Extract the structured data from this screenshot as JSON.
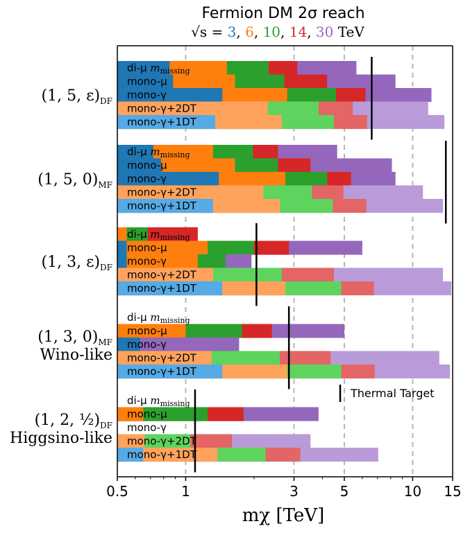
{
  "chart_data": {
    "type": "bar",
    "orientation": "horizontal",
    "title": "Fermion DM 2σ reach",
    "subtitle": {
      "prefix": "√s = ",
      "energies": [
        {
          "label": "3",
          "color": "#1f77b4"
        },
        {
          "label": "6",
          "color": "#ff7f0e"
        },
        {
          "label": "10",
          "color": "#2ca02c"
        },
        {
          "label": "14",
          "color": "#d62728"
        },
        {
          "label": "30",
          "color": "#9467bd"
        }
      ],
      "unit": "TeV"
    },
    "xlabel": "mχ [TeV]",
    "xscale": "log",
    "xlim": [
      0.5,
      15
    ],
    "xticks": [
      {
        "value": 0.5,
        "label": "0.5"
      },
      {
        "value": 1,
        "label": "1"
      },
      {
        "value": 3,
        "label": "3"
      },
      {
        "value": 5,
        "label": "5"
      },
      {
        "value": 10,
        "label": "10"
      },
      {
        "value": 15,
        "label": "15"
      }
    ],
    "gridlines_x": [
      1,
      3,
      5,
      10
    ],
    "colors": {
      "solid": [
        "#1f77b4",
        "#ff7f0e",
        "#2ca02c",
        "#d62728",
        "#9467bd"
      ],
      "light": [
        "#56aae6",
        "#ffa35c",
        "#5ed45e",
        "#e36565",
        "#b99bd9"
      ]
    },
    "groups": [
      {
        "label_lines": [
          "(1, 5, ε)DF"
        ],
        "thermal_target": 6.6,
        "rows": [
          {
            "label": "di-μ m_missing",
            "style": "solid",
            "reach": [
              0.85,
              1.52,
              2.32,
              3.1,
              5.65
            ]
          },
          {
            "label": "mono-μ",
            "style": "solid",
            "reach": [
              0.88,
              1.65,
              2.72,
              4.2,
              8.4
            ]
          },
          {
            "label": "mono-γ",
            "style": "solid",
            "reach": [
              1.45,
              2.8,
              4.6,
              6.2,
              12.1
            ]
          },
          {
            "label": "mono-γ+2DT",
            "style": "light",
            "reach": [
              0.5,
              2.3,
              3.85,
              5.45,
              11.7
            ]
          },
          {
            "label": "mono-γ+1DT",
            "style": "light",
            "reach": [
              1.35,
              2.65,
              4.5,
              6.3,
              13.8
            ]
          }
        ]
      },
      {
        "label_lines": [
          "(1, 5, 0)MF"
        ],
        "thermal_target": 14.0,
        "rows": [
          {
            "label": "di-μ m_missing",
            "style": "solid",
            "reach": [
              0.72,
              1.32,
              1.98,
              2.55,
              4.65
            ]
          },
          {
            "label": "mono-μ",
            "style": "solid",
            "reach": [
              0.78,
              1.65,
              2.55,
              3.55,
              8.1
            ]
          },
          {
            "label": "mono-γ",
            "style": "solid",
            "reach": [
              1.4,
              2.75,
              4.2,
              5.35,
              8.4
            ]
          },
          {
            "label": "mono-γ+2DT",
            "style": "light",
            "reach": [
              0.5,
              2.2,
              3.6,
              4.95,
              11.1
            ]
          },
          {
            "label": "mono-γ+1DT",
            "style": "light",
            "reach": [
              1.32,
              2.6,
              4.45,
              6.25,
              13.6
            ]
          }
        ]
      },
      {
        "label_lines": [
          "(1, 3, ε)DF"
        ],
        "thermal_target": 2.05,
        "rows": [
          {
            "label": "di-μ m_missing",
            "style": "solid",
            "reach": [
              0.5,
              0.55,
              0.68,
              1.13,
              1.13
            ]
          },
          {
            "label": "mono-μ",
            "style": "solid",
            "reach": [
              0.55,
              1.25,
              2.0,
              2.85,
              6.0
            ]
          },
          {
            "label": "mono-γ",
            "style": "solid",
            "reach": [
              0.55,
              1.13,
              1.5,
              1.5,
              1.95
            ]
          },
          {
            "label": "mono-γ+2DT",
            "style": "light",
            "reach": [
              0.5,
              1.32,
              2.65,
              4.5,
              13.6
            ]
          },
          {
            "label": "mono-γ+1DT",
            "style": "light",
            "reach": [
              1.45,
              2.75,
              4.85,
              6.75,
              14.8
            ]
          }
        ]
      },
      {
        "label_lines": [
          "(1, 3, 0)MF",
          "Wino-like"
        ],
        "thermal_target": 2.85,
        "rows": [
          {
            "label": "di-μ m_missing",
            "style": "none",
            "reach": []
          },
          {
            "label": "mono-μ",
            "style": "solid",
            "reach": [
              0.5,
              1.0,
              1.77,
              2.4,
              5.0
            ]
          },
          {
            "label": "mono-γ",
            "style": "solid",
            "reach": [
              0.63,
              0.63,
              0.63,
              0.63,
              1.72
            ]
          },
          {
            "label": "mono-γ+2DT",
            "style": "light",
            "reach": [
              0.5,
              1.3,
              2.6,
              4.35,
              13.1
            ]
          },
          {
            "label": "mono-γ+1DT",
            "style": "light",
            "reach": [
              1.45,
              2.8,
              4.85,
              6.8,
              14.6
            ]
          }
        ]
      },
      {
        "label_lines": [
          "(1, 2, ½)DF",
          "Higgsino-like"
        ],
        "thermal_target": 1.1,
        "rows": [
          {
            "label": "di-μ m_missing",
            "style": "none",
            "reach": []
          },
          {
            "label": "mono-μ",
            "style": "solid",
            "reach": [
              0.5,
              0.65,
              1.25,
              1.8,
              3.85
            ]
          },
          {
            "label": "mono-γ",
            "style": "none",
            "reach": []
          },
          {
            "label": "mono-γ+2DT",
            "style": "light",
            "reach": [
              0.5,
              0.66,
              1.05,
              1.6,
              3.55
            ]
          },
          {
            "label": "mono-γ+1DT",
            "style": "light",
            "reach": [
              0.65,
              1.38,
              2.25,
              3.2,
              7.05
            ]
          }
        ]
      }
    ],
    "legend": {
      "marker": "|",
      "label": "Thermal Target",
      "placement": "center-right"
    }
  }
}
